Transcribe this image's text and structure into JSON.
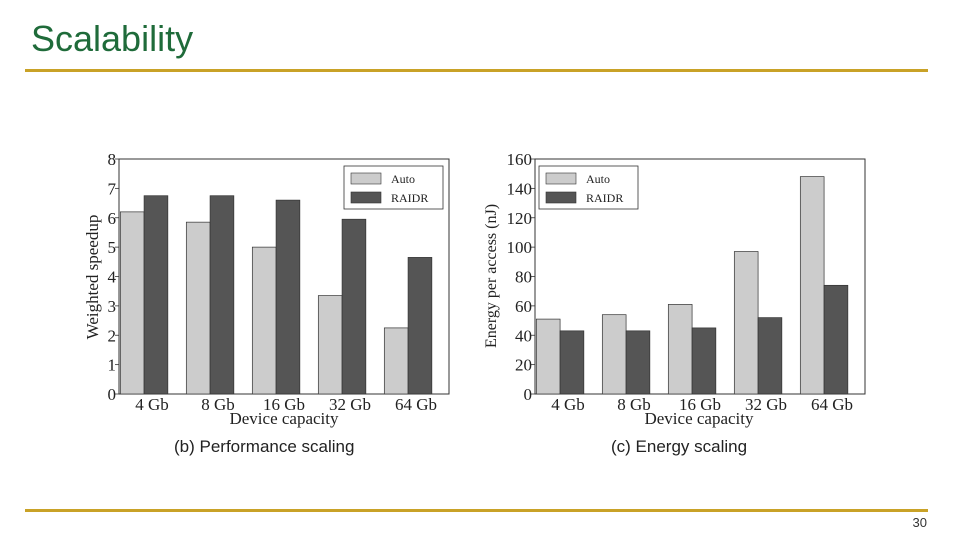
{
  "slide": {
    "title": "Scalability",
    "page_number": "30",
    "colors": {
      "title": "#1f6b3a",
      "rule": "#c9a227",
      "auto": "#cccccc",
      "raidr": "#555555"
    }
  },
  "captions": {
    "performance": "(b) Performance scaling",
    "energy": "(c) Energy scaling"
  },
  "chart_data": [
    {
      "id": "performance",
      "type": "bar",
      "title": "(b) Performance scaling",
      "xlabel": "Device capacity",
      "ylabel": "Weighted speedup",
      "categories": [
        "4 Gb",
        "8 Gb",
        "16 Gb",
        "32 Gb",
        "64 Gb"
      ],
      "ylim": [
        0,
        8
      ],
      "yticks": [
        "0",
        "1",
        "2",
        "3",
        "4",
        "5",
        "6",
        "7",
        "8"
      ],
      "legend": "top-right",
      "series": [
        {
          "name": "Auto",
          "values": [
            6.2,
            5.85,
            5.0,
            3.35,
            2.25
          ]
        },
        {
          "name": "RAIDR",
          "values": [
            6.75,
            6.75,
            6.6,
            5.95,
            4.65
          ]
        }
      ]
    },
    {
      "id": "energy",
      "type": "bar",
      "title": "(c) Energy scaling",
      "xlabel": "Device capacity",
      "ylabel": "Energy per access (nJ)",
      "categories": [
        "4 Gb",
        "8 Gb",
        "16 Gb",
        "32 Gb",
        "64 Gb"
      ],
      "ylim": [
        0,
        160
      ],
      "yticks": [
        "0",
        "20",
        "40",
        "60",
        "80",
        "100",
        "120",
        "140",
        "160"
      ],
      "legend": "top-left",
      "series": [
        {
          "name": "Auto",
          "values": [
            51,
            54,
            61,
            97,
            148
          ]
        },
        {
          "name": "RAIDR",
          "values": [
            43,
            43,
            45,
            52,
            74
          ]
        }
      ]
    }
  ]
}
